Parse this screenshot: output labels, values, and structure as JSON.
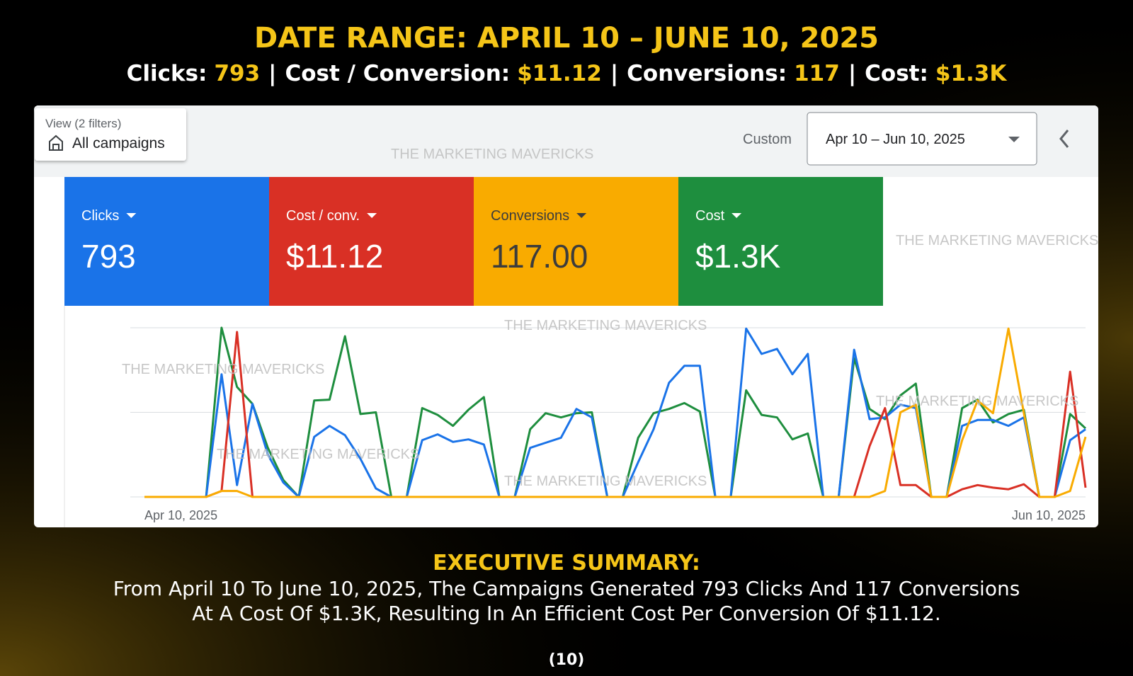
{
  "header": {
    "title": "DATE RANGE: APRIL 10 – JUNE 10, 2025",
    "separator": "|",
    "stats": [
      {
        "label": "Clicks:",
        "value": "793"
      },
      {
        "label": "Cost / Conversion:",
        "value": "$11.12"
      },
      {
        "label": "Conversions:",
        "value": "117"
      },
      {
        "label": "Cost:",
        "value": "$1.3K"
      }
    ]
  },
  "dashboard": {
    "filter_label": "View (2 filters)",
    "filter_value": "All campaigns",
    "date_mode": "Custom",
    "date_range": "Apr 10 – Jun 10, 2025",
    "watermark": "THE MARKETING MAVERICKS",
    "scorecards": [
      {
        "label": "Clicks",
        "value": "793",
        "color": "#1a73e8"
      },
      {
        "label": "Cost / conv.",
        "value": "$11.12",
        "color": "#d93025"
      },
      {
        "label": "Conversions",
        "value": "117.00",
        "color": "#f9ab00"
      },
      {
        "label": "Cost",
        "value": "$1.3K",
        "color": "#1e8e3e"
      }
    ]
  },
  "chart_data": {
    "type": "line",
    "categories": [
      "Apr 10, 2025",
      null,
      null,
      null,
      null,
      null,
      null,
      null,
      null,
      null,
      null,
      null,
      null,
      null,
      null,
      null,
      null,
      null,
      null,
      null,
      null,
      null,
      null,
      null,
      null,
      null,
      null,
      null,
      null,
      null,
      null,
      null,
      null,
      null,
      null,
      null,
      null,
      null,
      null,
      null,
      null,
      null,
      null,
      null,
      null,
      null,
      null,
      null,
      null,
      null,
      null,
      null,
      null,
      null,
      null,
      null,
      null,
      null,
      null,
      null,
      null,
      "Jun 10, 2025"
    ],
    "ylim": [
      0,
      2
    ],
    "gridlines": [
      0,
      1,
      2
    ],
    "series": [
      {
        "color": "#1e8e3e",
        "values": [
          0,
          0,
          0,
          0,
          0,
          2.0,
          1.3,
          1.1,
          0.58,
          0.2,
          0,
          1.14,
          1.15,
          1.9,
          0.98,
          1.0,
          0,
          0,
          1.05,
          0.97,
          0.84,
          1.03,
          1.18,
          0,
          0,
          0.8,
          0.99,
          0.94,
          0.99,
          1.0,
          0,
          0,
          0.7,
          0.99,
          1.04,
          1.11,
          1.01,
          0,
          0,
          1.26,
          0.97,
          0.94,
          0.68,
          0.75,
          0,
          0,
          1.64,
          1.04,
          0.92,
          1.2,
          1.34,
          0,
          0,
          1.05,
          1.15,
          0.88,
          0.98,
          1.03,
          0,
          0,
          0.98,
          0.81
        ]
      },
      {
        "color": "#1a73e8",
        "values": [
          0,
          0,
          0,
          0,
          0,
          1.45,
          0.14,
          1.1,
          0.5,
          0.17,
          0,
          0.71,
          0.84,
          0.73,
          0.45,
          0.1,
          0,
          0,
          0.67,
          0.74,
          0.65,
          0.68,
          0.62,
          0,
          0,
          0.58,
          0.64,
          0.7,
          1.04,
          0.94,
          0,
          0,
          0.41,
          0.8,
          1.35,
          1.55,
          1.55,
          0,
          0,
          1.99,
          1.69,
          1.75,
          1.45,
          1.69,
          0,
          0,
          1.74,
          0.92,
          0.94,
          1.09,
          1.05,
          0,
          0,
          0.84,
          0.91,
          0.91,
          0.84,
          0.94,
          0,
          0,
          0.67,
          0.8
        ]
      },
      {
        "color": "#d93025",
        "values": [
          0,
          0,
          0,
          0,
          0,
          0.07,
          1.95,
          0,
          0,
          0,
          0,
          0,
          0,
          0,
          0,
          0,
          0,
          0,
          0,
          0,
          0,
          0,
          0,
          0,
          0,
          0,
          0,
          0,
          0,
          0,
          0,
          0,
          0,
          0,
          0,
          0,
          0,
          0,
          0,
          0,
          0,
          0,
          0,
          0,
          0,
          0,
          0,
          0.6,
          1.05,
          0.14,
          0.14,
          0,
          0,
          0.09,
          0.14,
          0.11,
          0.09,
          0.15,
          0,
          0,
          1.48,
          0.11
        ]
      },
      {
        "color": "#f9ab00",
        "values": [
          0,
          0,
          0,
          0,
          0,
          0.07,
          0.07,
          0,
          0,
          0,
          0,
          0,
          0,
          0,
          0,
          0,
          0,
          0,
          0,
          0,
          0,
          0,
          0,
          0,
          0,
          0,
          0,
          0,
          0,
          0,
          0,
          0,
          0,
          0,
          0,
          0,
          0,
          0,
          0,
          0,
          0,
          0,
          0,
          0,
          0,
          0,
          0,
          0,
          0.07,
          1.0,
          1.09,
          0,
          0,
          0.67,
          1.14,
          0.99,
          1.99,
          0.99,
          0,
          0,
          0.07,
          0.71
        ]
      }
    ]
  },
  "summary": {
    "heading": "EXECUTIVE SUMMARY:",
    "lines": [
      "From April 10 To June 10, 2025, The Campaigns Generated 793 Clicks And 117 Conversions",
      "At A Cost Of $1.3K, Resulting In An Efficient Cost Per Conversion Of $11.12."
    ],
    "page": "(10)"
  }
}
